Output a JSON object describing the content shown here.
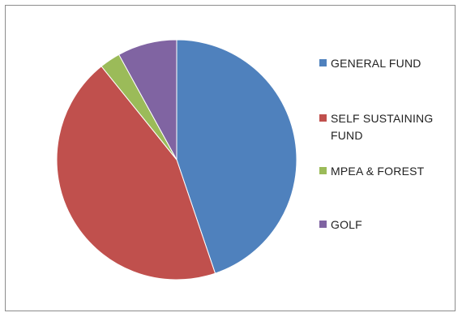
{
  "chart_data": {
    "type": "pie",
    "title": "",
    "legend_position": "right",
    "categories": [
      "GENERAL FUND",
      "SELF SUSTAINING FUND",
      "MPEA & FOREST",
      "GOLF"
    ],
    "values": [
      44.8,
      44.4,
      2.8,
      8.0
    ],
    "colors": [
      "#4F81BD",
      "#C0504D",
      "#9BBB59",
      "#8064A2"
    ]
  }
}
